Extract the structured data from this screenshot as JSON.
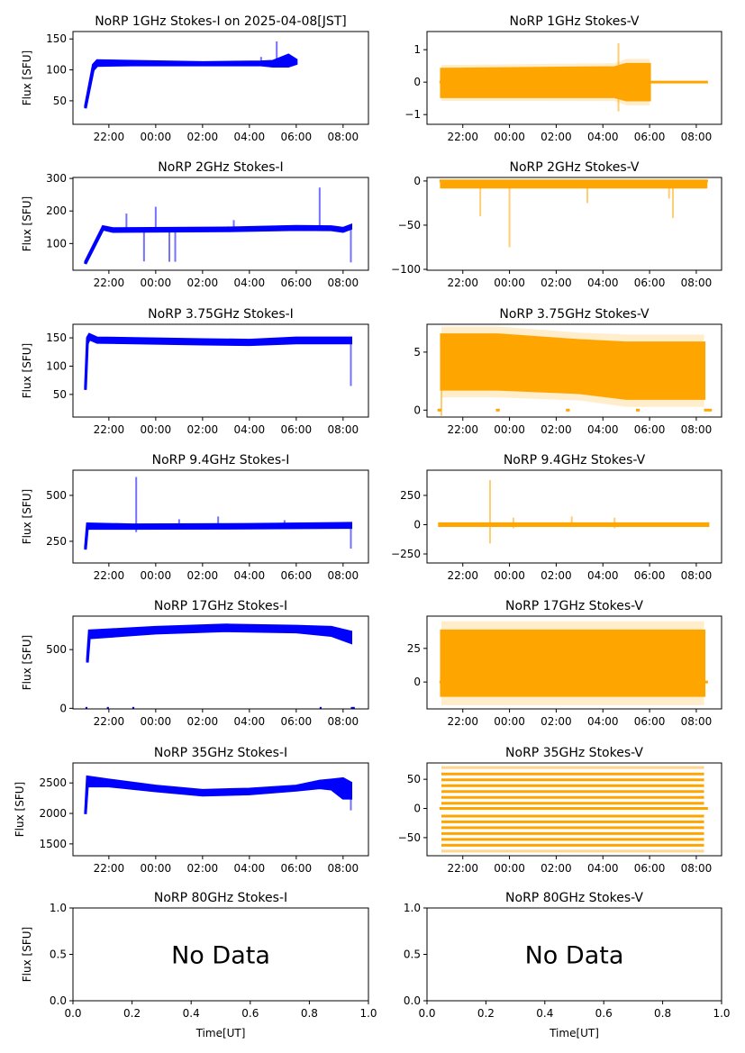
{
  "chart_data": [
    {
      "type": "scatter",
      "id": "i1",
      "title": "NoRP 1GHz Stokes-I on 2025-04-08[JST]",
      "ylabel": "Flux [SFU]",
      "color": "#0000ff",
      "xlim": [
        "20:28",
        "09:05"
      ],
      "xticks": [
        "22:00",
        "00:00",
        "02:00",
        "04:00",
        "06:00",
        "08:00"
      ],
      "ylim": [
        12,
        162
      ],
      "yticks": [
        50,
        100,
        150
      ],
      "envelope": [
        [
          "21:00",
          38,
          42
        ],
        [
          "21:20",
          100,
          108
        ],
        [
          "21:30",
          107,
          115
        ],
        [
          "23:00",
          108,
          114
        ],
        [
          "02:00",
          108,
          112
        ],
        [
          "04:30",
          108,
          113
        ],
        [
          "05:00",
          106,
          114
        ],
        [
          "05:40",
          106,
          124
        ],
        [
          "06:00",
          110,
          116
        ]
      ],
      "spikes": [
        [
          "05:10",
          110,
          146
        ],
        [
          "04:30",
          110,
          121
        ]
      ]
    },
    {
      "type": "scatter",
      "id": "v1",
      "title": "NoRP 1GHz Stokes-V",
      "color": "#ffa500",
      "xlim": [
        "20:28",
        "09:05"
      ],
      "xticks": [
        "22:00",
        "00:00",
        "02:00",
        "04:00",
        "06:00",
        "08:00"
      ],
      "ylim": [
        -1.3,
        1.56
      ],
      "yticks": [
        -1,
        0,
        1
      ],
      "envelope": [
        [
          "21:05",
          -0.45,
          0.4
        ],
        [
          "04:30",
          -0.45,
          0.45
        ],
        [
          "05:00",
          -0.55,
          0.55
        ],
        [
          "06:00",
          -0.55,
          0.55
        ]
      ],
      "zero_segments": [
        [
          "21:00",
          "21:05"
        ],
        [
          "06:00",
          "08:30"
        ]
      ],
      "spikes": [
        [
          "04:40",
          -0.9,
          1.2
        ]
      ]
    },
    {
      "type": "scatter",
      "id": "i2",
      "title": "NoRP 2GHz Stokes-I",
      "ylabel": "Flux [SFU]",
      "color": "#0000ff",
      "xlim": [
        "20:28",
        "09:05"
      ],
      "xticks": [
        "22:00",
        "00:00",
        "02:00",
        "04:00",
        "06:00",
        "08:00"
      ],
      "ylim": [
        18,
        303
      ],
      "yticks": [
        100,
        200,
        300
      ],
      "envelope": [
        [
          "21:00",
          38,
          44
        ],
        [
          "21:45",
          144,
          152
        ],
        [
          "22:10",
          137,
          146
        ],
        [
          "03:00",
          139,
          148
        ],
        [
          "06:00",
          143,
          153
        ],
        [
          "07:30",
          142,
          152
        ],
        [
          "08:00",
          137,
          147
        ],
        [
          "08:20",
          146,
          156
        ]
      ],
      "spikes": [
        [
          "22:45",
          140,
          192
        ],
        [
          "23:30",
          45,
          140
        ],
        [
          "00:00",
          140,
          213
        ],
        [
          "00:35",
          44,
          140
        ],
        [
          "00:50",
          44,
          140
        ],
        [
          "03:20",
          140,
          172
        ],
        [
          "07:00",
          140,
          272
        ],
        [
          "08:20",
          42,
          152
        ]
      ]
    },
    {
      "type": "scatter",
      "id": "v2",
      "title": "NoRP 2GHz Stokes-V",
      "color": "#ffa500",
      "xlim": [
        "20:28",
        "09:05"
      ],
      "xticks": [
        "22:00",
        "00:00",
        "02:00",
        "04:00",
        "06:00",
        "08:00"
      ],
      "ylim": [
        -101,
        4
      ],
      "yticks": [
        -100,
        -50,
        0
      ],
      "envelope": [
        [
          "21:05",
          -7,
          0
        ],
        [
          "08:25",
          -7,
          0
        ]
      ],
      "zero_segments": [
        [
          "21:00",
          "08:30"
        ]
      ],
      "spikes": [
        [
          "22:45",
          -40,
          0
        ],
        [
          "00:00",
          -75,
          0
        ],
        [
          "03:20",
          -25,
          0
        ],
        [
          "06:50",
          -20,
          0
        ],
        [
          "07:00",
          -42,
          0
        ]
      ]
    },
    {
      "type": "scatter",
      "id": "i3",
      "title": "NoRP 3.75GHz Stokes-I",
      "ylabel": "Flux [SFU]",
      "color": "#0000ff",
      "xlim": [
        "20:28",
        "09:05"
      ],
      "xticks": [
        "22:00",
        "00:00",
        "02:00",
        "04:00",
        "06:00",
        "08:00"
      ],
      "ylim": [
        10,
        174
      ],
      "yticks": [
        50,
        100,
        150
      ],
      "envelope": [
        [
          "21:00",
          58,
          64
        ],
        [
          "21:05",
          140,
          150
        ],
        [
          "21:10",
          148,
          156
        ],
        [
          "21:30",
          142,
          150
        ],
        [
          "02:00",
          139,
          147
        ],
        [
          "04:00",
          138,
          146
        ],
        [
          "06:00",
          141,
          150
        ],
        [
          "08:20",
          141,
          150
        ]
      ],
      "spikes": [
        [
          "08:20",
          65,
          146
        ]
      ]
    },
    {
      "type": "scatter",
      "id": "v3",
      "title": "NoRP 3.75GHz Stokes-V",
      "color": "#ffa500",
      "xlim": [
        "20:28",
        "09:05"
      ],
      "xticks": [
        "22:00",
        "00:00",
        "02:00",
        "04:00",
        "06:00",
        "08:00"
      ],
      "ylim": [
        -0.6,
        7.4
      ],
      "yticks": [
        0,
        5
      ],
      "envelope": [
        [
          "21:05",
          1.8,
          6.5
        ],
        [
          "23:30",
          1.8,
          6.5
        ],
        [
          "03:00",
          1.5,
          6.0
        ],
        [
          "05:00",
          1.0,
          5.8
        ],
        [
          "08:20",
          1.0,
          5.8
        ]
      ],
      "zero_segments": [
        [
          "20:55",
          "21:05"
        ],
        [
          "23:25",
          "23:35"
        ],
        [
          "02:25",
          "02:35"
        ],
        [
          "05:25",
          "05:35"
        ],
        [
          "08:20",
          "08:40"
        ]
      ],
      "spikes": [
        [
          "21:05",
          -0.5,
          2
        ]
      ]
    },
    {
      "type": "scatter",
      "id": "i4",
      "title": "NoRP 9.4GHz Stokes-I",
      "ylabel": "Flux [SFU]",
      "color": "#0000ff",
      "xlim": [
        "20:28",
        "09:05"
      ],
      "xticks": [
        "22:00",
        "00:00",
        "02:00",
        "04:00",
        "06:00",
        "08:00"
      ],
      "ylim": [
        132,
        637
      ],
      "yticks": [
        250,
        500
      ],
      "envelope": [
        [
          "21:00",
          205,
          220
        ],
        [
          "21:05",
          320,
          345
        ],
        [
          "23:00",
          320,
          340
        ],
        [
          "04:00",
          322,
          342
        ],
        [
          "08:20",
          325,
          348
        ]
      ],
      "spikes": [
        [
          "23:10",
          300,
          600
        ],
        [
          "01:00",
          325,
          370
        ],
        [
          "02:40",
          325,
          385
        ],
        [
          "05:30",
          325,
          365
        ],
        [
          "08:20",
          210,
          345
        ]
      ]
    },
    {
      "type": "scatter",
      "id": "v4",
      "title": "NoRP 9.4GHz Stokes-V",
      "color": "#ffa500",
      "xlim": [
        "20:28",
        "09:05"
      ],
      "xticks": [
        "22:00",
        "00:00",
        "02:00",
        "04:00",
        "06:00",
        "08:00"
      ],
      "ylim": [
        -327,
        465
      ],
      "yticks": [
        -250,
        0,
        250
      ],
      "envelope": [
        [
          "21:00",
          -8,
          8
        ],
        [
          "08:30",
          -8,
          8
        ]
      ],
      "zero_segments": [
        [
          "21:00",
          "08:30"
        ]
      ],
      "spikes": [
        [
          "23:10",
          -160,
          380
        ],
        [
          "00:10",
          -30,
          60
        ],
        [
          "02:40",
          -20,
          70
        ],
        [
          "04:30",
          -30,
          60
        ]
      ]
    },
    {
      "type": "scatter",
      "id": "i5",
      "title": "NoRP 17GHz Stokes-I",
      "ylabel": "Flux [SFU]",
      "color": "#0000ff",
      "xlim": [
        "20:28",
        "09:05"
      ],
      "xticks": [
        "22:00",
        "00:00",
        "02:00",
        "04:00",
        "06:00",
        "08:00"
      ],
      "ylim": [
        -5,
        785
      ],
      "yticks": [
        0,
        500
      ],
      "envelope": [
        [
          "21:05",
          390,
          420
        ],
        [
          "21:10",
          600,
          660
        ],
        [
          "00:00",
          640,
          690
        ],
        [
          "03:00",
          660,
          710
        ],
        [
          "06:00",
          650,
          700
        ],
        [
          "07:30",
          620,
          690
        ],
        [
          "08:20",
          560,
          650
        ]
      ],
      "zero_segments": [
        [
          "21:00",
          "21:05"
        ],
        [
          "21:55",
          "22:00"
        ],
        [
          "23:00",
          "23:05"
        ],
        [
          "07:00",
          "07:05"
        ],
        [
          "08:20",
          "08:30"
        ]
      ]
    },
    {
      "type": "scatter",
      "id": "v5",
      "title": "NoRP 17GHz Stokes-V",
      "color": "#ffa500",
      "xlim": [
        "20:28",
        "09:05"
      ],
      "xticks": [
        "22:00",
        "00:00",
        "02:00",
        "04:00",
        "06:00",
        "08:00"
      ],
      "ylim": [
        -20,
        49
      ],
      "yticks": [
        0,
        25
      ],
      "envelope": [
        [
          "21:05",
          -10,
          38
        ],
        [
          "08:20",
          -10,
          38
        ]
      ],
      "zero_segments": [
        [
          "21:00",
          "21:05"
        ],
        [
          "08:20",
          "08:30"
        ]
      ]
    },
    {
      "type": "scatter",
      "id": "i6",
      "title": "NoRP 35GHz Stokes-I",
      "ylabel": "Flux [SFU]",
      "color": "#0000ff",
      "xlim": [
        "20:28",
        "09:05"
      ],
      "xticks": [
        "22:00",
        "00:00",
        "02:00",
        "04:00",
        "06:00",
        "08:00"
      ],
      "ylim": [
        1306,
        2828
      ],
      "yticks": [
        1500,
        2000,
        2500
      ],
      "envelope": [
        [
          "21:00",
          1990,
          2010
        ],
        [
          "21:05",
          2450,
          2600
        ],
        [
          "22:00",
          2450,
          2550
        ],
        [
          "00:00",
          2370,
          2450
        ],
        [
          "02:00",
          2300,
          2380
        ],
        [
          "04:00",
          2320,
          2400
        ],
        [
          "06:00",
          2380,
          2450
        ],
        [
          "07:00",
          2420,
          2530
        ],
        [
          "07:30",
          2400,
          2550
        ],
        [
          "08:00",
          2250,
          2570
        ],
        [
          "08:20",
          2250,
          2500
        ]
      ],
      "spikes": [
        [
          "08:20",
          2050,
          2400
        ]
      ]
    },
    {
      "type": "scatter",
      "id": "v6",
      "title": "NoRP 35GHz Stokes-V",
      "color": "#ffa500",
      "xlim": [
        "20:28",
        "09:05"
      ],
      "xticks": [
        "22:00",
        "00:00",
        "02:00",
        "04:00",
        "06:00",
        "08:00"
      ],
      "ylim": [
        -81,
        78
      ],
      "yticks": [
        -50,
        0,
        50
      ],
      "levels": [
        -73,
        -63,
        -53,
        -43,
        -33,
        -23,
        -13,
        0,
        9,
        19,
        29,
        39,
        49,
        59,
        70
      ],
      "levels_range": [
        "21:05",
        "08:20"
      ],
      "zero_segments": [
        [
          "21:00",
          "08:30"
        ]
      ]
    },
    {
      "type": "scatter",
      "id": "i7",
      "title": "NoRP 80GHz Stokes-I",
      "ylabel": "Flux [SFU]",
      "xlabel": "Time[UT]",
      "no_data": "No Data",
      "xlim": [
        0,
        1
      ],
      "xticks": [
        "0.0",
        "0.2",
        "0.4",
        "0.6",
        "0.8",
        "1.0"
      ],
      "ylim": [
        0,
        1
      ],
      "yticks": [
        "0.0",
        "0.5",
        "1.0"
      ]
    },
    {
      "type": "scatter",
      "id": "v7",
      "title": "NoRP 80GHz Stokes-V",
      "xlabel": "Time[UT]",
      "no_data": "No Data",
      "xlim": [
        0,
        1
      ],
      "xticks": [
        "0.0",
        "0.2",
        "0.4",
        "0.6",
        "0.8",
        "1.0"
      ],
      "ylim": [
        0,
        1
      ],
      "yticks": [
        "0.0",
        "0.5",
        "1.0"
      ]
    }
  ]
}
